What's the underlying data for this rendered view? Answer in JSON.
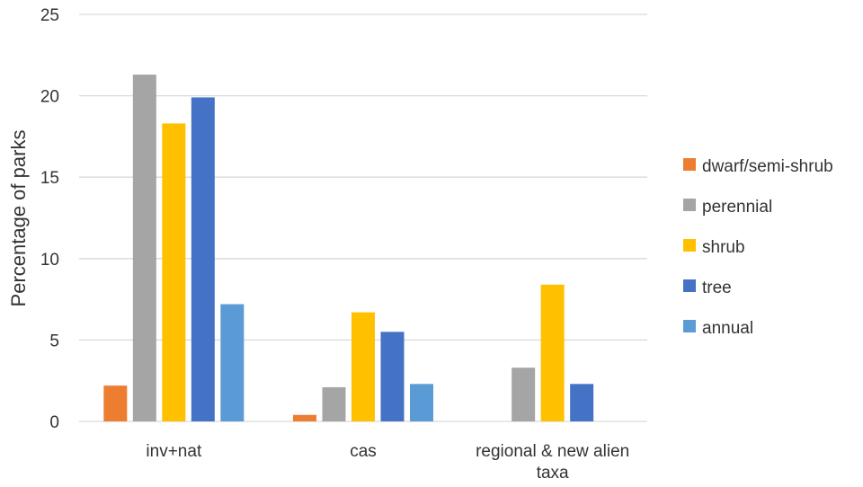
{
  "chart_data": {
    "type": "bar",
    "title": "",
    "xlabel": "",
    "ylabel": "Percentage of parks",
    "ylim": [
      0,
      25
    ],
    "yticks": [
      "0",
      "5",
      "10",
      "15",
      "20",
      "25"
    ],
    "grid": true,
    "legend_position": "right",
    "categories": [
      [
        "inv+nat"
      ],
      [
        "cas"
      ],
      [
        "regional & new alien",
        "taxa"
      ]
    ],
    "series": [
      {
        "name": "dwarf/semi-shrub",
        "color": "#ed7d31",
        "values": [
          2.2,
          0.4,
          null
        ]
      },
      {
        "name": "perennial",
        "color": "#a5a5a5",
        "values": [
          21.3,
          2.1,
          3.3
        ]
      },
      {
        "name": "shrub",
        "color": "#ffc000",
        "values": [
          18.3,
          6.7,
          8.4
        ]
      },
      {
        "name": "tree",
        "color": "#4472c4",
        "values": [
          19.9,
          5.5,
          2.3
        ]
      },
      {
        "name": "annual",
        "color": "#5b9bd5",
        "values": [
          7.2,
          2.3,
          null
        ]
      }
    ]
  }
}
